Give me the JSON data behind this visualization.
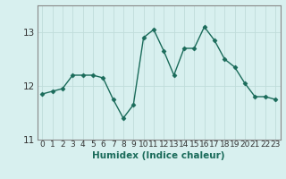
{
  "x": [
    0,
    1,
    2,
    3,
    4,
    5,
    6,
    7,
    8,
    9,
    10,
    11,
    12,
    13,
    14,
    15,
    16,
    17,
    18,
    19,
    20,
    21,
    22,
    23
  ],
  "y": [
    11.85,
    11.9,
    11.95,
    12.2,
    12.2,
    12.2,
    12.15,
    11.75,
    11.4,
    11.65,
    12.9,
    13.05,
    12.65,
    12.2,
    12.7,
    12.7,
    13.1,
    12.85,
    12.5,
    12.35,
    12.05,
    11.8,
    11.8,
    11.75
  ],
  "line_color": "#1a6b5a",
  "marker": "D",
  "marker_size": 2.5,
  "bg_color": "#d8f0ef",
  "grid_color": "#c0dcda",
  "xlabel": "Humidex (Indice chaleur)",
  "ylim": [
    11.0,
    13.5
  ],
  "xlim": [
    -0.5,
    23.5
  ],
  "yticks": [
    11,
    12,
    13
  ],
  "xticks": [
    0,
    1,
    2,
    3,
    4,
    5,
    6,
    7,
    8,
    9,
    10,
    11,
    12,
    13,
    14,
    15,
    16,
    17,
    18,
    19,
    20,
    21,
    22,
    23
  ],
  "tick_fontsize": 6.5,
  "xlabel_fontsize": 7.5,
  "ytick_fontsize": 7.5,
  "line_width": 1.0,
  "spine_color": "#888888",
  "tick_color": "#333333"
}
